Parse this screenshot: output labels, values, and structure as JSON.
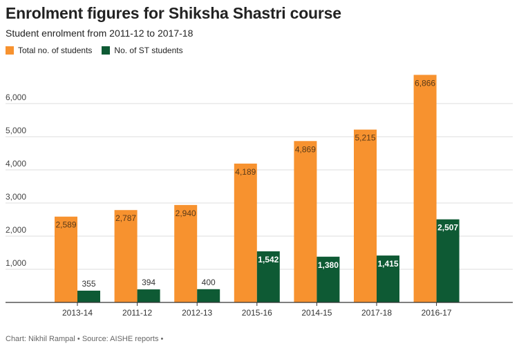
{
  "title": "Enrolment figures for Shiksha Shastri course",
  "subtitle": "Student enrolment from 2011-12 to 2017-18",
  "footer": "Chart: Nikhil Rampal • Source: AISHE reports •",
  "colors": {
    "total": "#f7922f",
    "st": "#0e5a34",
    "grid": "#dddddd",
    "axis": "#333333"
  },
  "chart_data": {
    "type": "bar",
    "categories": [
      "2013-14",
      "2011-12",
      "2012-13",
      "2015-16",
      "2014-15",
      "2017-18",
      "2016-17"
    ],
    "series": [
      {
        "name": "Total no. of students",
        "values": [
          2589,
          2787,
          2940,
          4189,
          4869,
          5215,
          6866
        ],
        "labels": [
          "2,589",
          "2,787",
          "2,940",
          "4,189",
          "4,869",
          "5,215",
          "6,866"
        ]
      },
      {
        "name": "No. of ST students",
        "values": [
          355,
          394,
          400,
          1542,
          1380,
          1415,
          2507
        ],
        "labels": [
          "355",
          "394",
          "400",
          "1,542",
          "1,380",
          "1,415",
          "2,507"
        ]
      }
    ],
    "yticks": [
      1000,
      2000,
      3000,
      4000,
      5000,
      6000
    ],
    "ytick_labels": [
      "1,000",
      "2,000",
      "3,000",
      "4,000",
      "5,000",
      "6,000"
    ],
    "ylim": [
      0,
      7000
    ],
    "grid": true,
    "legend": "top-left"
  }
}
